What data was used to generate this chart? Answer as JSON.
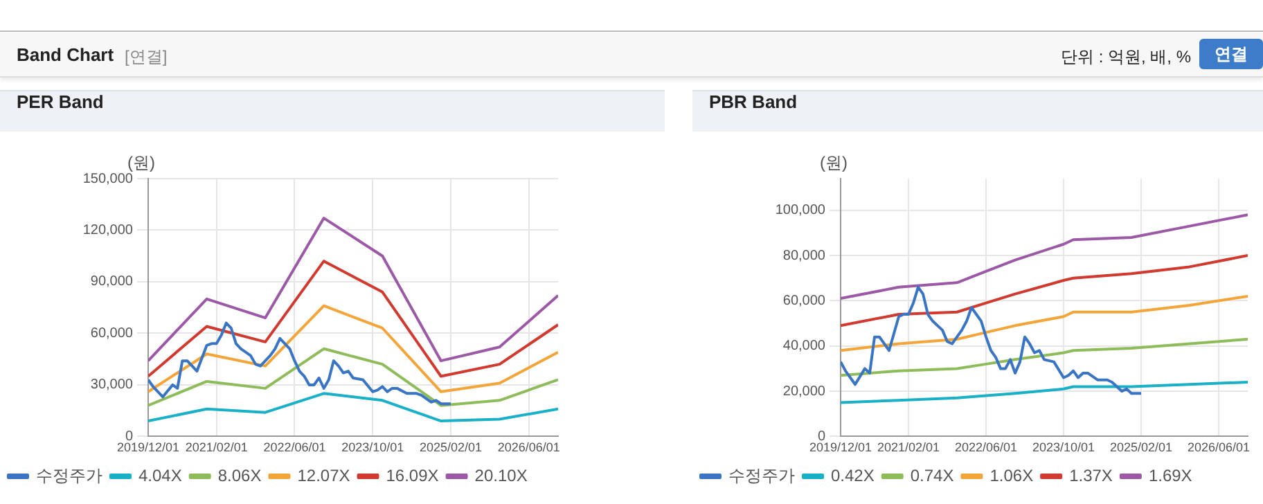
{
  "chart_data": [
    {
      "type": "line",
      "title": "PER Band",
      "ylabel": "(원)",
      "annotations": [
        "Band Chart",
        "[연결]",
        "단위 : 억원, 배, %",
        "연결"
      ],
      "x": [
        "2019-12-01",
        "2020-12-01",
        "2021-12-01",
        "2022-12-01",
        "2023-12-01",
        "2024-12-01",
        "2025-12-01",
        "2026-12-01"
      ],
      "series": [
        {
          "name": "수정주가",
          "color": "#3a75c4",
          "x": [
            "2019-12-01",
            "2020-01-01",
            "2020-03-01",
            "2020-05-01",
            "2020-06-01",
            "2020-07-01",
            "2020-08-01",
            "2020-10-01",
            "2020-12-01",
            "2021-01-01",
            "2021-02-01",
            "2021-03-01",
            "2021-04-01",
            "2021-05-01",
            "2021-06-01",
            "2021-07-01",
            "2021-09-01",
            "2021-10-01",
            "2021-11-01",
            "2022-01-01",
            "2022-02-01",
            "2022-03-01",
            "2022-04-01",
            "2022-05-01",
            "2022-06-01",
            "2022-07-01",
            "2022-08-01",
            "2022-09-01",
            "2022-10-01",
            "2022-11-01",
            "2022-12-01",
            "2023-01-01",
            "2023-02-01",
            "2023-03-01",
            "2023-04-01",
            "2023-05-01",
            "2023-06-01",
            "2023-08-01",
            "2023-10-01",
            "2023-11-01",
            "2023-12-01",
            "2024-01-01",
            "2024-02-01",
            "2024-03-01",
            "2024-05-01",
            "2024-07-01",
            "2024-08-01",
            "2024-10-01",
            "2024-11-01",
            "2024-12-01",
            "2025-02-01"
          ],
          "values": [
            33000,
            29000,
            23000,
            30000,
            28000,
            44000,
            44000,
            38000,
            53000,
            54000,
            54000,
            59000,
            66000,
            63000,
            54000,
            51000,
            47000,
            42000,
            41000,
            47000,
            51000,
            57000,
            54000,
            51000,
            44000,
            38000,
            35000,
            30000,
            30000,
            34000,
            28000,
            33000,
            44000,
            41000,
            37000,
            38000,
            34000,
            33000,
            26000,
            27000,
            29000,
            26000,
            28000,
            28000,
            25000,
            25000,
            24000,
            20000,
            21000,
            19000,
            19000
          ]
        },
        {
          "name": "4.04X",
          "color": "#1ab0c8",
          "values": [
            9000,
            16000,
            14000,
            25000,
            21000,
            9000,
            10000,
            16000
          ]
        },
        {
          "name": "8.06X",
          "color": "#8fbc5a",
          "values": [
            18000,
            32000,
            28000,
            51000,
            42000,
            18000,
            21000,
            33000
          ]
        },
        {
          "name": "12.07X",
          "color": "#f4a53a",
          "values": [
            26000,
            48000,
            41000,
            76000,
            63000,
            26000,
            31000,
            49000
          ]
        },
        {
          "name": "16.09X",
          "color": "#d03a2f",
          "values": [
            35000,
            64000,
            55000,
            102000,
            84000,
            35000,
            42000,
            65000
          ]
        },
        {
          "name": "20.10X",
          "color": "#9b59a6",
          "values": [
            44000,
            80000,
            69000,
            127000,
            105000,
            44000,
            52000,
            82000
          ]
        }
      ],
      "xlim": [
        "2019-12-01",
        "2026-12-01"
      ],
      "xticks": [
        {
          "value": "2019-12-01",
          "label": "2019/12/01"
        },
        {
          "value": "2021-02-01",
          "label": "2021/02/01"
        },
        {
          "value": "2022-06-01",
          "label": "2022/06/01"
        },
        {
          "value": "2023-10-01",
          "label": "2023/10/01"
        },
        {
          "value": "2025-02-01",
          "label": "2025/02/01"
        },
        {
          "value": "2026-06-01",
          "label": "2026/06/01"
        }
      ],
      "ylim": [
        0,
        150000
      ],
      "yticks": [
        0,
        {
          "value": 30000,
          "label": "30,000"
        },
        {
          "value": 60000,
          "label": "60,000"
        },
        {
          "value": 90000,
          "label": "90,000"
        },
        {
          "value": 120000,
          "label": "120,000"
        },
        {
          "value": 150000,
          "label": "150,000"
        }
      ],
      "grid": true,
      "legend": "bottom",
      "marker": "none",
      "line_style": "solid"
    },
    {
      "type": "line",
      "title": "PBR Band",
      "ylabel": "(원)",
      "x": [
        "2019-12-01",
        "2020-12-01",
        "2021-12-01",
        "2022-06-01",
        "2022-12-01",
        "2023-10-01",
        "2023-12-01",
        "2024-12-01",
        "2025-12-01",
        "2026-12-01"
      ],
      "series": [
        {
          "name": "수정주가",
          "color": "#3a75c4",
          "x": [
            "2019-12-01",
            "2020-01-01",
            "2020-03-01",
            "2020-05-01",
            "2020-06-01",
            "2020-07-01",
            "2020-08-01",
            "2020-10-01",
            "2020-12-01",
            "2021-01-01",
            "2021-02-01",
            "2021-03-01",
            "2021-04-01",
            "2021-05-01",
            "2021-06-01",
            "2021-07-01",
            "2021-09-01",
            "2021-10-01",
            "2021-11-01",
            "2022-01-01",
            "2022-02-01",
            "2022-03-01",
            "2022-04-01",
            "2022-05-01",
            "2022-06-01",
            "2022-07-01",
            "2022-08-01",
            "2022-09-01",
            "2022-10-01",
            "2022-11-01",
            "2022-12-01",
            "2023-01-01",
            "2023-02-01",
            "2023-03-01",
            "2023-04-01",
            "2023-05-01",
            "2023-06-01",
            "2023-08-01",
            "2023-10-01",
            "2023-11-01",
            "2023-12-01",
            "2024-01-01",
            "2024-02-01",
            "2024-03-01",
            "2024-05-01",
            "2024-07-01",
            "2024-08-01",
            "2024-10-01",
            "2024-11-01",
            "2024-12-01",
            "2025-02-01"
          ],
          "values": [
            33000,
            29000,
            23000,
            30000,
            28000,
            44000,
            44000,
            38000,
            53000,
            54000,
            54000,
            59000,
            66000,
            63000,
            54000,
            51000,
            47000,
            42000,
            41000,
            47000,
            51000,
            57000,
            54000,
            51000,
            44000,
            38000,
            35000,
            30000,
            30000,
            34000,
            28000,
            33000,
            44000,
            41000,
            37000,
            38000,
            34000,
            33000,
            26000,
            27000,
            29000,
            26000,
            28000,
            28000,
            25000,
            25000,
            24000,
            20000,
            21000,
            19000,
            19000
          ]
        },
        {
          "name": "0.42X",
          "color": "#1ab0c8",
          "values": [
            15000,
            16000,
            17000,
            18000,
            19000,
            21000,
            22000,
            22000,
            23000,
            24000
          ]
        },
        {
          "name": "0.74X",
          "color": "#8fbc5a",
          "values": [
            27000,
            29000,
            30000,
            32000,
            34000,
            37000,
            38000,
            39000,
            41000,
            43000
          ]
        },
        {
          "name": "1.06X",
          "color": "#f4a53a",
          "values": [
            38000,
            41000,
            43000,
            46000,
            49000,
            53000,
            55000,
            55000,
            58000,
            62000
          ]
        },
        {
          "name": "1.37X",
          "color": "#d03a2f",
          "values": [
            49000,
            54000,
            55000,
            59000,
            63000,
            69000,
            70000,
            72000,
            75000,
            80000
          ]
        },
        {
          "name": "1.69X",
          "color": "#9b59a6",
          "values": [
            61000,
            66000,
            68000,
            73000,
            78000,
            85000,
            87000,
            88000,
            93000,
            98000
          ]
        }
      ],
      "xlim": [
        "2019-12-01",
        "2026-12-01"
      ],
      "xticks": [
        {
          "value": "2019-12-01",
          "label": "2019/12/01"
        },
        {
          "value": "2021-02-01",
          "label": "2021/02/01"
        },
        {
          "value": "2022-06-01",
          "label": "2022/06/01"
        },
        {
          "value": "2023-10-01",
          "label": "2023/10/01"
        },
        {
          "value": "2025-02-01",
          "label": "2025/02/01"
        },
        {
          "value": "2026-06-01",
          "label": "2026/06/01"
        }
      ],
      "ylim": [
        0,
        114000
      ],
      "yticks": [
        0,
        {
          "value": 20000,
          "label": "20,000"
        },
        {
          "value": 40000,
          "label": "40,000"
        },
        {
          "value": 60000,
          "label": "60,000"
        },
        {
          "value": 80000,
          "label": "80,000"
        },
        {
          "value": 100000,
          "label": "100,000"
        }
      ],
      "grid": true,
      "legend": "bottom",
      "marker": "none",
      "line_style": "solid"
    }
  ]
}
